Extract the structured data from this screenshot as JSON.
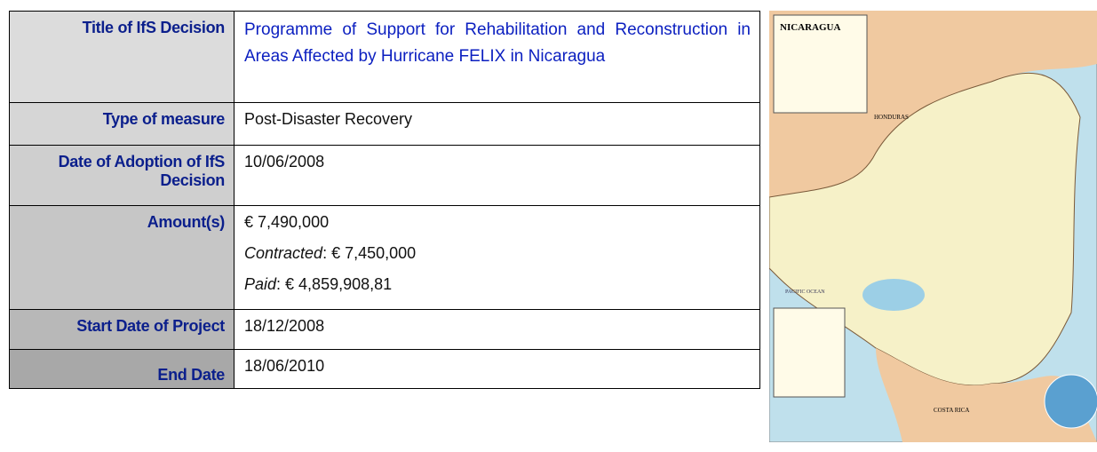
{
  "table": {
    "rows": [
      {
        "label": "Title of IfS Decision",
        "value": "Programme of Support for Rehabilitation and Reconstruction in Areas Affected by Hurricane FELIX in Nicaragua"
      },
      {
        "label": "Type of measure",
        "value": "Post-Disaster Recovery"
      },
      {
        "label": "Date of Adoption of IfS Decision",
        "value": "10/06/2008"
      },
      {
        "label": "Amount(s)",
        "value": "€ 7,490,000",
        "details": [
          {
            "term": "Contracted",
            "rest": ": € 7,450,000"
          },
          {
            "term": "Paid",
            "rest": ": € 4,859,908,81"
          }
        ]
      },
      {
        "label": "Start Date of Project",
        "value": "18/12/2008"
      },
      {
        "label": "End Date",
        "value": "18/06/2010"
      }
    ]
  },
  "map": {
    "labels": [
      "NICARAGUA",
      "HONDURAS",
      "PACIFIC OCEAN",
      "COSTA RICA"
    ]
  }
}
